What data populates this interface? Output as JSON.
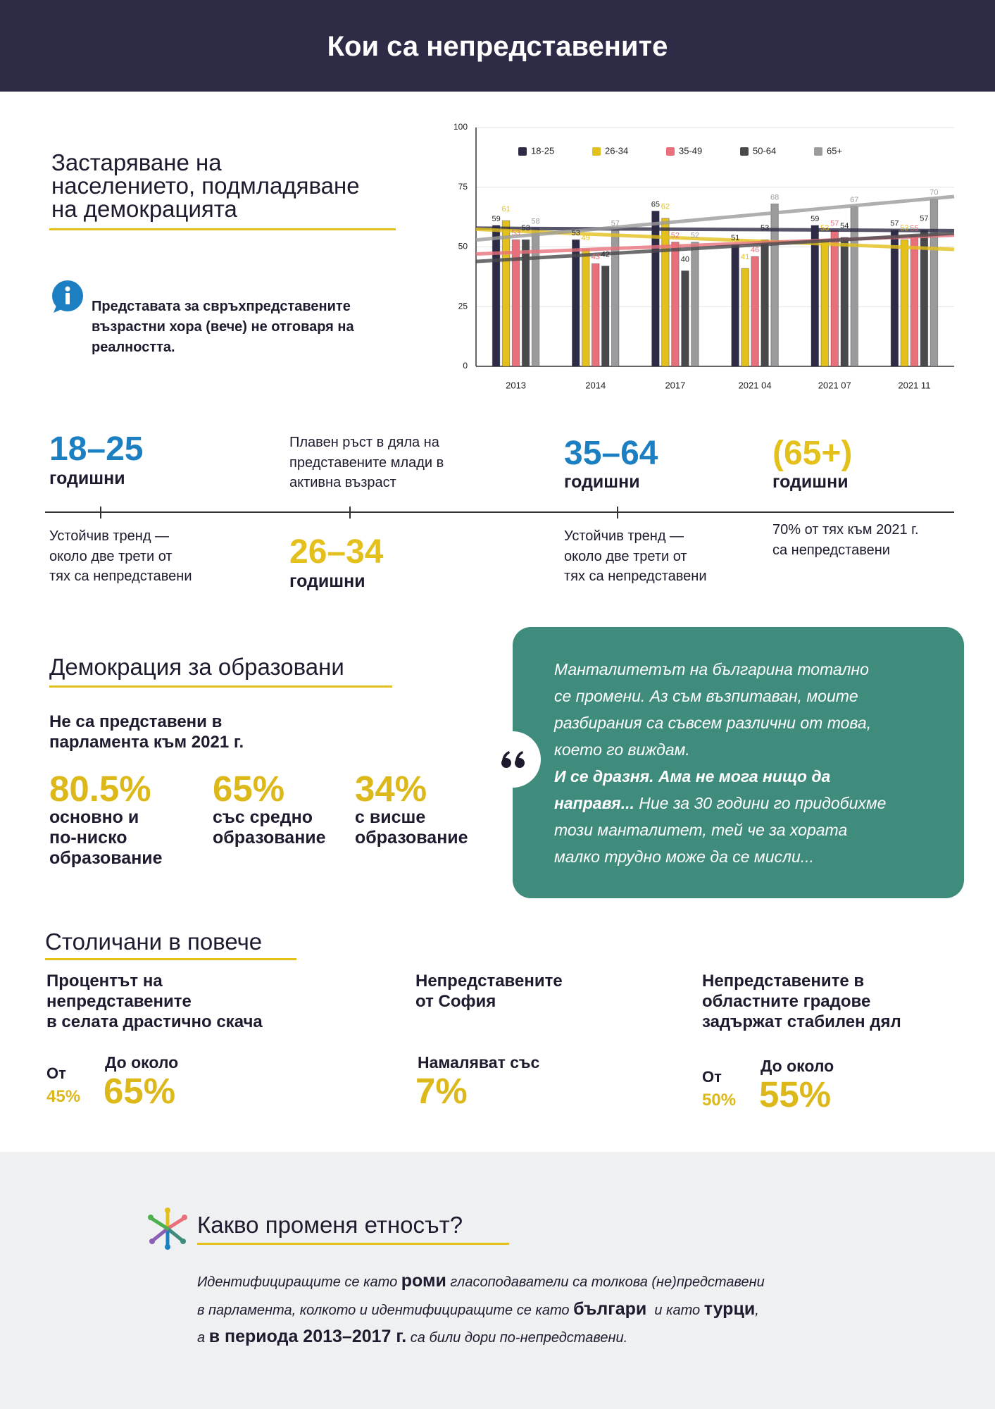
{
  "header": {
    "title": "Кои са непредставените"
  },
  "aging": {
    "title": [
      "Застаряване на",
      "населението, подмладяване",
      "на демокрацията"
    ],
    "info": [
      "Представата за свръхпредставените",
      "възрастни хора (вече) не отговаря на",
      "реалността."
    ]
  },
  "chart_data": {
    "type": "bar",
    "categories": [
      "2013",
      "2014",
      "2017",
      "2021 04",
      "2021 07",
      "2021 11"
    ],
    "series": [
      {
        "name": "18-25",
        "color": "#2d2b45",
        "values": [
          59,
          53,
          65,
          51,
          59,
          57
        ]
      },
      {
        "name": "26-34",
        "color": "#e3c01b",
        "values": [
          61,
          49,
          62,
          41,
          53,
          53
        ]
      },
      {
        "name": "35-49",
        "color": "#e8707a",
        "values": [
          53,
          43,
          52,
          46,
          57,
          55
        ]
      },
      {
        "name": "50-64",
        "color": "#4a4a4d",
        "values": [
          53,
          42,
          40,
          53,
          54,
          57
        ]
      },
      {
        "name": "65+",
        "color": "#9b9b9b",
        "values": [
          58,
          57,
          52,
          68,
          67,
          70
        ]
      }
    ],
    "ylim": [
      0,
      100
    ],
    "yticks": [
      0,
      25,
      50,
      75,
      100
    ],
    "grid": true,
    "trendlines": true,
    "legend": "top"
  },
  "timeline": {
    "groups": [
      {
        "range": "18–25",
        "unit": "годишни",
        "note": [
          "Устойчив тренд —",
          "около две трети от",
          "тях са непредставени"
        ],
        "color": "#1b7fc1"
      },
      {
        "range": "26–34",
        "unit": "годишни",
        "note": [
          "Плавен ръст в дяла на",
          "представените млади в",
          "активна възраст"
        ],
        "color": "#e3c01b"
      },
      {
        "range": "35–64",
        "unit": "годишни",
        "note": [
          "Устойчив тренд —",
          "около две трети от",
          "тях са непредставени"
        ],
        "color": "#1b7fc1"
      },
      {
        "range": "(65+)",
        "unit": "годишни",
        "note": [
          "70% от тях към 2021 г.",
          "са непредставени"
        ],
        "color": "#e3c01b"
      }
    ]
  },
  "education": {
    "title": "Демокрация за образовани",
    "subtitle": [
      "Не са представени в",
      "парламента към 2021 г."
    ],
    "stats": [
      {
        "value": "80.5%",
        "label": [
          "основно и",
          "по-ниско",
          "образование"
        ]
      },
      {
        "value": "65%",
        "label": [
          "със средно",
          "образование"
        ]
      },
      {
        "value": "34%",
        "label": [
          "с висше",
          "образование"
        ]
      }
    ]
  },
  "quote": {
    "lines": [
      [
        {
          "text": "Манталитетът на българина тотално",
          "bold": false
        }
      ],
      [
        {
          "text": "се промени. Аз съм възпитаван, моите",
          "bold": false
        }
      ],
      [
        {
          "text": "разбирания са съвсем различни от това,",
          "bold": false
        }
      ],
      [
        {
          "text": "което го виждам.",
          "bold": false
        }
      ],
      [
        {
          "text": "И се дразня. Ама не мога нищо да",
          "bold": true
        }
      ],
      [
        {
          "text": "направя...",
          "bold": true
        },
        {
          "text": " Ние за 30 години го придобихме",
          "bold": false
        }
      ],
      [
        {
          "text": "този манталитет, тей че за хората",
          "bold": false
        }
      ],
      [
        {
          "text": "малко трудно може да се мисли...",
          "bold": false
        }
      ]
    ]
  },
  "capital": {
    "title": "Столичани в повече",
    "columns": [
      {
        "lines": [
          "Процентът на",
          "непредставените",
          "в селата драстично скача"
        ],
        "from_label": "От",
        "from_value": "45%",
        "to_label": "До около",
        "to_value": "65%"
      },
      {
        "lines": [
          "Непредставените",
          "от София"
        ],
        "to_label": "Намаляват със",
        "to_value": "7%"
      },
      {
        "lines": [
          "Непредставените в",
          "областните градове",
          "задържат стабилен дял"
        ],
        "from_label": "От",
        "from_value": "50%",
        "to_label": "До около",
        "to_value": "55%"
      }
    ]
  },
  "ethnos": {
    "title": "Какво променя етносът?",
    "lines": [
      [
        {
          "text": "Идентифициращите се като ",
          "bold": false
        },
        {
          "text": "роми",
          "bold": true
        },
        {
          "text": " гласоподаватели са толкова (не)представени",
          "bold": false
        }
      ],
      [
        {
          "text": "в парламента, колкото и идентифициращите се като ",
          "bold": false
        },
        {
          "text": "българи",
          "bold": true
        },
        {
          "text": "  и като ",
          "bold": false
        },
        {
          "text": "турци",
          "bold": true
        },
        {
          "text": ",",
          "bold": false
        }
      ],
      [
        {
          "text": "а ",
          "bold": false
        },
        {
          "text": "в периода 2013–2017 г.",
          "bold": true
        },
        {
          "text": " са били дори по-непредставени.",
          "bold": false
        }
      ]
    ]
  }
}
